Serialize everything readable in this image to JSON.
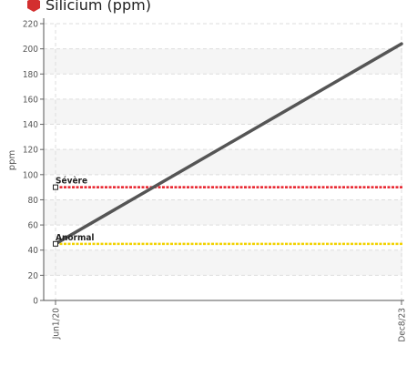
{
  "chart_data": {
    "type": "line",
    "title": "Silicium (ppm)",
    "ylabel": "ppm",
    "xlabel": "",
    "ylim": [
      0,
      220
    ],
    "yticks": [
      0,
      20,
      40,
      60,
      80,
      100,
      120,
      140,
      160,
      180,
      200,
      220
    ],
    "x": [
      "Jun1/20",
      "Dec8/23"
    ],
    "series": [
      {
        "values": [
          45,
          204
        ],
        "color": "#555555"
      }
    ],
    "thresholds": [
      {
        "label": "Sévère",
        "value": 90,
        "color": "#e8202a"
      },
      {
        "label": "Anormal",
        "value": 45,
        "color": "#f2d200"
      }
    ],
    "grid": true,
    "title_icon": "red-hexagon-icon",
    "title_icon_color": "#d32f2f"
  }
}
